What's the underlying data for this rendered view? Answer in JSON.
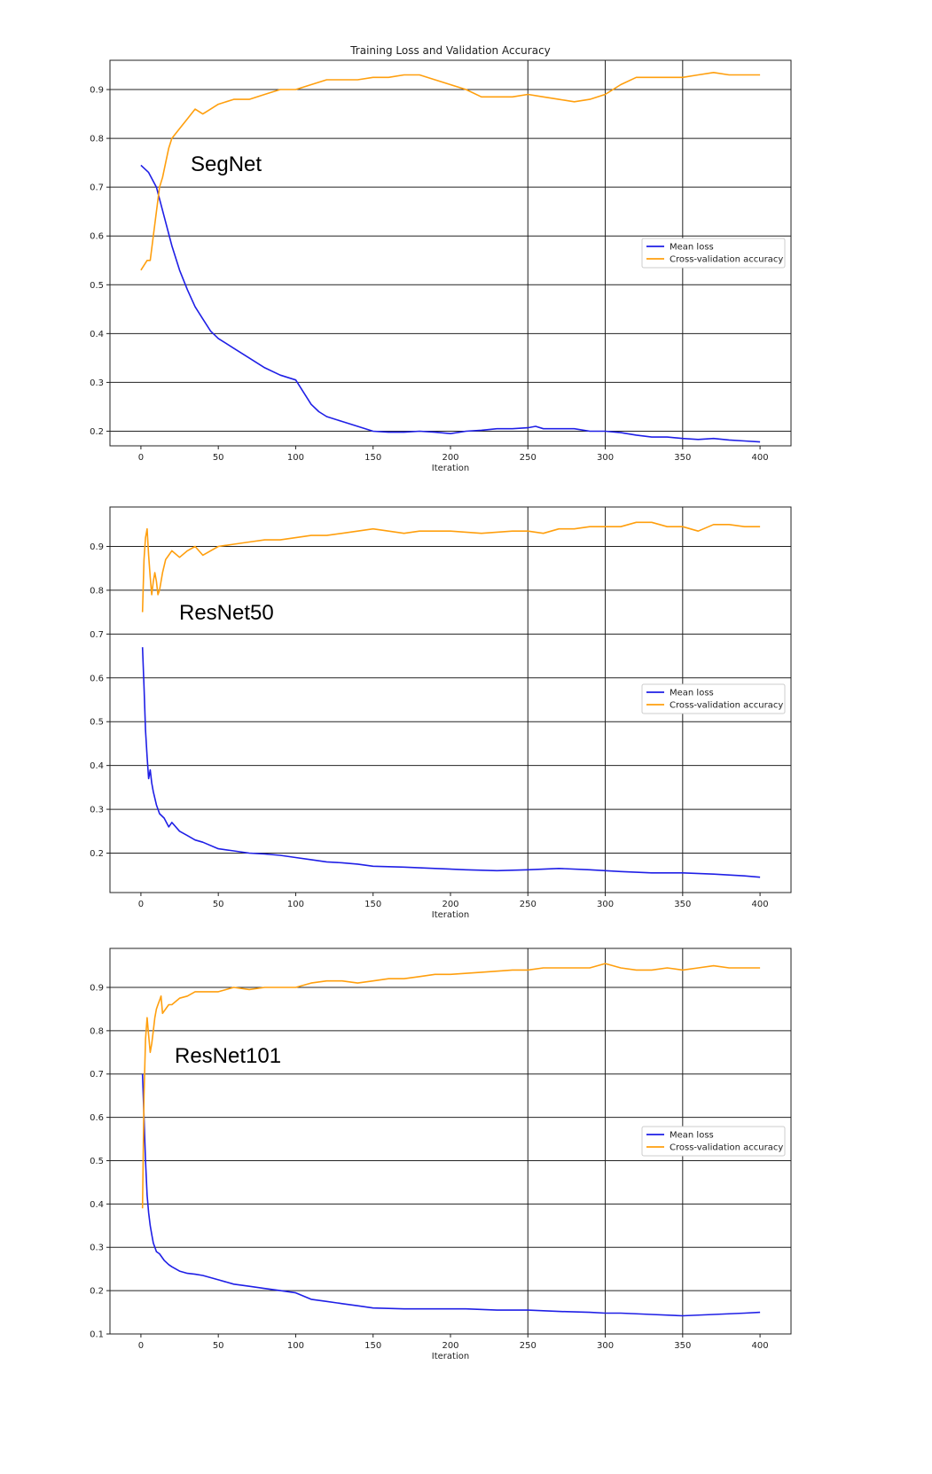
{
  "chart_data": [
    {
      "type": "line",
      "title": "Training Loss and Validation Accuracy",
      "model_label": "SegNet",
      "xlabel": "Iteration",
      "ylabel": "",
      "xlim": [
        -20,
        420
      ],
      "ylim": [
        0.17,
        0.96
      ],
      "xticks": [
        0,
        50,
        100,
        150,
        200,
        250,
        300,
        350,
        400
      ],
      "yticks": [
        0.2,
        0.3,
        0.4,
        0.5,
        0.6,
        0.7,
        0.8,
        0.9
      ],
      "grid": "horizontal lines; vertical lines at x=250, 300, 350",
      "legend_position": "center-right",
      "series": [
        {
          "name": "Mean loss",
          "color": "#1f1fe6",
          "x": [
            0,
            5,
            10,
            15,
            20,
            25,
            30,
            35,
            40,
            45,
            50,
            60,
            70,
            80,
            90,
            100,
            105,
            110,
            115,
            120,
            130,
            140,
            150,
            160,
            170,
            180,
            190,
            200,
            210,
            220,
            230,
            240,
            250,
            255,
            260,
            270,
            280,
            290,
            300,
            310,
            320,
            330,
            340,
            350,
            360,
            370,
            380,
            390,
            400
          ],
          "y": [
            0.745,
            0.73,
            0.7,
            0.64,
            0.58,
            0.53,
            0.49,
            0.455,
            0.43,
            0.405,
            0.39,
            0.37,
            0.35,
            0.33,
            0.315,
            0.305,
            0.28,
            0.255,
            0.24,
            0.23,
            0.22,
            0.21,
            0.2,
            0.198,
            0.198,
            0.2,
            0.198,
            0.195,
            0.2,
            0.202,
            0.205,
            0.205,
            0.207,
            0.21,
            0.205,
            0.205,
            0.205,
            0.2,
            0.2,
            0.197,
            0.192,
            0.188,
            0.188,
            0.185,
            0.183,
            0.185,
            0.182,
            0.18,
            0.178
          ]
        },
        {
          "name": "Cross-validation accuracy",
          "color": "#ff9f0e",
          "x": [
            0,
            2,
            4,
            6,
            8,
            10,
            12,
            14,
            16,
            18,
            20,
            25,
            30,
            35,
            40,
            45,
            50,
            60,
            70,
            80,
            90,
            100,
            110,
            120,
            130,
            140,
            150,
            160,
            170,
            180,
            190,
            200,
            210,
            220,
            230,
            240,
            250,
            260,
            270,
            280,
            290,
            300,
            305,
            310,
            320,
            330,
            340,
            350,
            360,
            370,
            380,
            390,
            400
          ],
          "y": [
            0.53,
            0.54,
            0.55,
            0.55,
            0.6,
            0.65,
            0.7,
            0.72,
            0.75,
            0.78,
            0.8,
            0.82,
            0.84,
            0.86,
            0.85,
            0.86,
            0.87,
            0.88,
            0.88,
            0.89,
            0.9,
            0.9,
            0.91,
            0.92,
            0.92,
            0.92,
            0.925,
            0.925,
            0.93,
            0.93,
            0.92,
            0.91,
            0.9,
            0.885,
            0.885,
            0.885,
            0.89,
            0.885,
            0.88,
            0.875,
            0.88,
            0.89,
            0.9,
            0.91,
            0.925,
            0.925,
            0.925,
            0.925,
            0.93,
            0.935,
            0.93,
            0.93,
            0.93
          ]
        }
      ]
    },
    {
      "type": "line",
      "model_label": "ResNet50",
      "xlabel": "Iteration",
      "ylabel": "",
      "xlim": [
        -20,
        420
      ],
      "ylim": [
        0.11,
        0.99
      ],
      "xticks": [
        0,
        50,
        100,
        150,
        200,
        250,
        300,
        350,
        400
      ],
      "yticks": [
        0.2,
        0.3,
        0.4,
        0.5,
        0.6,
        0.7,
        0.8,
        0.9
      ],
      "grid": "horizontal lines; vertical lines at x=250, 300, 350",
      "legend_position": "center-right",
      "series": [
        {
          "name": "Mean loss",
          "color": "#1f1fe6",
          "x": [
            1,
            2,
            3,
            4,
            5,
            6,
            7,
            8,
            10,
            12,
            15,
            18,
            20,
            25,
            30,
            35,
            40,
            50,
            60,
            70,
            80,
            90,
            100,
            110,
            120,
            130,
            140,
            150,
            170,
            190,
            210,
            230,
            250,
            270,
            290,
            300,
            310,
            330,
            350,
            370,
            390,
            400
          ],
          "y": [
            0.67,
            0.58,
            0.48,
            0.42,
            0.37,
            0.39,
            0.36,
            0.34,
            0.31,
            0.29,
            0.28,
            0.26,
            0.27,
            0.25,
            0.24,
            0.23,
            0.225,
            0.21,
            0.205,
            0.2,
            0.198,
            0.195,
            0.19,
            0.185,
            0.18,
            0.178,
            0.175,
            0.17,
            0.168,
            0.165,
            0.162,
            0.16,
            0.162,
            0.165,
            0.162,
            0.16,
            0.158,
            0.155,
            0.155,
            0.152,
            0.148,
            0.145
          ]
        },
        {
          "name": "Cross-validation accuracy",
          "color": "#ff9f0e",
          "x": [
            1,
            2,
            3,
            4,
            5,
            6,
            7,
            8,
            9,
            10,
            11,
            12,
            14,
            16,
            18,
            20,
            25,
            30,
            35,
            40,
            50,
            60,
            70,
            80,
            90,
            100,
            110,
            120,
            130,
            140,
            150,
            160,
            170,
            180,
            200,
            220,
            240,
            250,
            260,
            270,
            280,
            290,
            300,
            310,
            320,
            330,
            340,
            350,
            360,
            370,
            380,
            390,
            400
          ],
          "y": [
            0.75,
            0.87,
            0.92,
            0.94,
            0.88,
            0.83,
            0.79,
            0.82,
            0.84,
            0.82,
            0.79,
            0.8,
            0.84,
            0.87,
            0.88,
            0.89,
            0.875,
            0.89,
            0.9,
            0.88,
            0.9,
            0.905,
            0.91,
            0.915,
            0.915,
            0.92,
            0.925,
            0.925,
            0.93,
            0.935,
            0.94,
            0.935,
            0.93,
            0.935,
            0.935,
            0.93,
            0.935,
            0.935,
            0.93,
            0.94,
            0.94,
            0.945,
            0.945,
            0.945,
            0.955,
            0.955,
            0.945,
            0.945,
            0.935,
            0.95,
            0.95,
            0.945,
            0.945
          ]
        }
      ]
    },
    {
      "type": "line",
      "model_label": "ResNet101",
      "xlabel": "Iteration",
      "ylabel": "",
      "xlim": [
        -20,
        420
      ],
      "ylim": [
        0.1,
        0.99
      ],
      "xticks": [
        0,
        50,
        100,
        150,
        200,
        250,
        300,
        350,
        400
      ],
      "yticks": [
        0.1,
        0.2,
        0.3,
        0.4,
        0.5,
        0.6,
        0.7,
        0.8,
        0.9
      ],
      "grid": "horizontal lines; vertical lines at x=250, 300, 350",
      "legend_position": "center-right",
      "series": [
        {
          "name": "Mean loss",
          "color": "#1f1fe6",
          "x": [
            1,
            2,
            3,
            4,
            5,
            6,
            7,
            8,
            10,
            12,
            15,
            18,
            20,
            25,
            30,
            35,
            40,
            50,
            60,
            70,
            80,
            90,
            100,
            110,
            120,
            130,
            140,
            150,
            170,
            190,
            210,
            230,
            250,
            270,
            290,
            300,
            310,
            330,
            350,
            370,
            390,
            400
          ],
          "y": [
            0.7,
            0.6,
            0.5,
            0.42,
            0.38,
            0.35,
            0.33,
            0.31,
            0.29,
            0.285,
            0.27,
            0.26,
            0.255,
            0.245,
            0.24,
            0.238,
            0.235,
            0.225,
            0.215,
            0.21,
            0.205,
            0.2,
            0.195,
            0.18,
            0.175,
            0.17,
            0.165,
            0.16,
            0.158,
            0.158,
            0.158,
            0.155,
            0.155,
            0.152,
            0.15,
            0.148,
            0.148,
            0.145,
            0.142,
            0.145,
            0.148,
            0.15
          ]
        },
        {
          "name": "Cross-validation accuracy",
          "color": "#ff9f0e",
          "x": [
            1,
            2,
            3,
            4,
            5,
            6,
            7,
            8,
            9,
            10,
            11,
            12,
            13,
            14,
            16,
            18,
            20,
            25,
            30,
            35,
            40,
            50,
            60,
            70,
            80,
            90,
            100,
            110,
            120,
            130,
            140,
            150,
            160,
            170,
            180,
            190,
            200,
            220,
            240,
            250,
            260,
            280,
            290,
            300,
            310,
            320,
            330,
            340,
            350,
            360,
            370,
            380,
            390,
            400
          ],
          "y": [
            0.39,
            0.65,
            0.78,
            0.83,
            0.79,
            0.75,
            0.77,
            0.8,
            0.83,
            0.85,
            0.86,
            0.87,
            0.88,
            0.84,
            0.85,
            0.86,
            0.86,
            0.875,
            0.88,
            0.89,
            0.89,
            0.89,
            0.9,
            0.895,
            0.9,
            0.9,
            0.9,
            0.91,
            0.915,
            0.915,
            0.91,
            0.915,
            0.92,
            0.92,
            0.925,
            0.93,
            0.93,
            0.935,
            0.94,
            0.94,
            0.945,
            0.945,
            0.945,
            0.955,
            0.945,
            0.94,
            0.94,
            0.945,
            0.94,
            0.945,
            0.95,
            0.945,
            0.945,
            0.945
          ]
        }
      ]
    }
  ]
}
